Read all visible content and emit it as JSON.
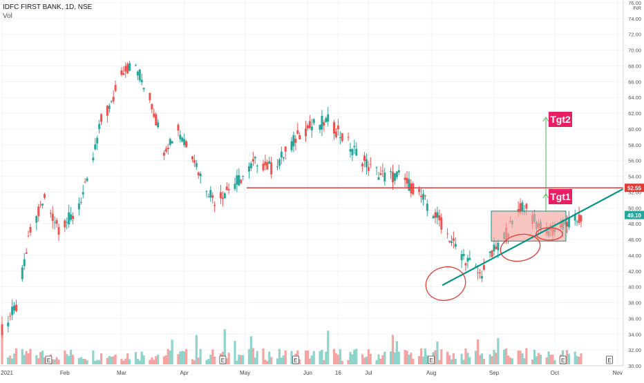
{
  "header": {
    "symbol_line": "IDFC FIRST BANK, 1D, NSE",
    "volume_label": "Vol"
  },
  "chart_data": {
    "type": "candlestick",
    "currency": "INR",
    "y_ticks": [
      "76.00",
      "74.00",
      "72.00",
      "70.00",
      "68.00",
      "66.00",
      "64.00",
      "62.00",
      "60.00",
      "58.00",
      "56.00",
      "54.00",
      "52.00",
      "50.00",
      "48.00",
      "46.00",
      "44.00",
      "42.00",
      "40.00",
      "38.00",
      "36.00",
      "34.00",
      "32.00",
      "30.00"
    ],
    "x_ticks": [
      "2021",
      "Feb",
      "Mar",
      "Apr",
      "May",
      "Jun",
      "16",
      "Jul",
      "Aug",
      "Sep",
      "Oct",
      "Nov"
    ],
    "ylim": [
      30,
      76
    ],
    "price_badges": {
      "resistance": "52.55",
      "last": "49.10"
    },
    "targets": [
      "Tgt1",
      "Tgt2"
    ],
    "resistance_level": 52.55,
    "last_price": 49.1,
    "target_levels": {
      "Tgt1": 50.0,
      "Tgt2": 61.0
    },
    "earnings_markers": [
      "E",
      "E",
      "E",
      "E",
      "E",
      "E"
    ],
    "colors": {
      "up": "#26a69a",
      "down": "#ef5350",
      "vol_up": "#8fd4cb",
      "vol_down": "#f5a3a3",
      "resistance": "#e53935",
      "trendline": "#009688",
      "target_badge": "#e91e63",
      "target_arrow": "#4caf50",
      "zone_fill": "#f4a6a0",
      "zone_stroke": "#009688",
      "circle": "#e53935"
    },
    "ohlc_waypoints": [
      [
        "2021-01-01",
        34.5
      ],
      [
        "2021-01-08",
        37.5
      ],
      [
        "2021-01-15",
        47
      ],
      [
        "2021-01-22",
        51
      ],
      [
        "2021-01-29",
        47.5
      ],
      [
        "2021-02-05",
        49
      ],
      [
        "2021-02-12",
        53
      ],
      [
        "2021-02-19",
        61
      ],
      [
        "2021-02-24",
        63
      ],
      [
        "2021-03-01",
        67.5
      ],
      [
        "2021-03-08",
        68
      ],
      [
        "2021-03-15",
        64
      ],
      [
        "2021-03-22",
        57.5
      ],
      [
        "2021-03-29",
        60
      ],
      [
        "2021-04-05",
        57
      ],
      [
        "2021-04-09",
        54
      ],
      [
        "2021-04-16",
        51
      ],
      [
        "2021-04-23",
        52.5
      ],
      [
        "2021-04-30",
        54
      ],
      [
        "2021-05-07",
        56
      ],
      [
        "2021-05-14",
        55
      ],
      [
        "2021-05-21",
        57
      ],
      [
        "2021-05-28",
        59.5
      ],
      [
        "2021-06-04",
        60.5
      ],
      [
        "2021-06-11",
        61
      ],
      [
        "2021-06-18",
        59
      ],
      [
        "2021-06-25",
        57
      ],
      [
        "2021-07-02",
        55
      ],
      [
        "2021-07-09",
        54
      ],
      [
        "2021-07-16",
        54
      ],
      [
        "2021-07-23",
        52.5
      ],
      [
        "2021-07-30",
        50.5
      ],
      [
        "2021-08-06",
        48
      ],
      [
        "2021-08-13",
        45
      ],
      [
        "2021-08-20",
        43
      ],
      [
        "2021-08-25",
        41.5
      ],
      [
        "2021-09-01",
        44.5
      ],
      [
        "2021-09-08",
        47
      ],
      [
        "2021-09-15",
        50.5
      ],
      [
        "2021-09-22",
        48
      ],
      [
        "2021-09-29",
        47
      ],
      [
        "2021-10-06",
        48
      ],
      [
        "2021-10-13",
        48.5
      ],
      [
        "2021-10-15",
        49.1
      ]
    ]
  }
}
